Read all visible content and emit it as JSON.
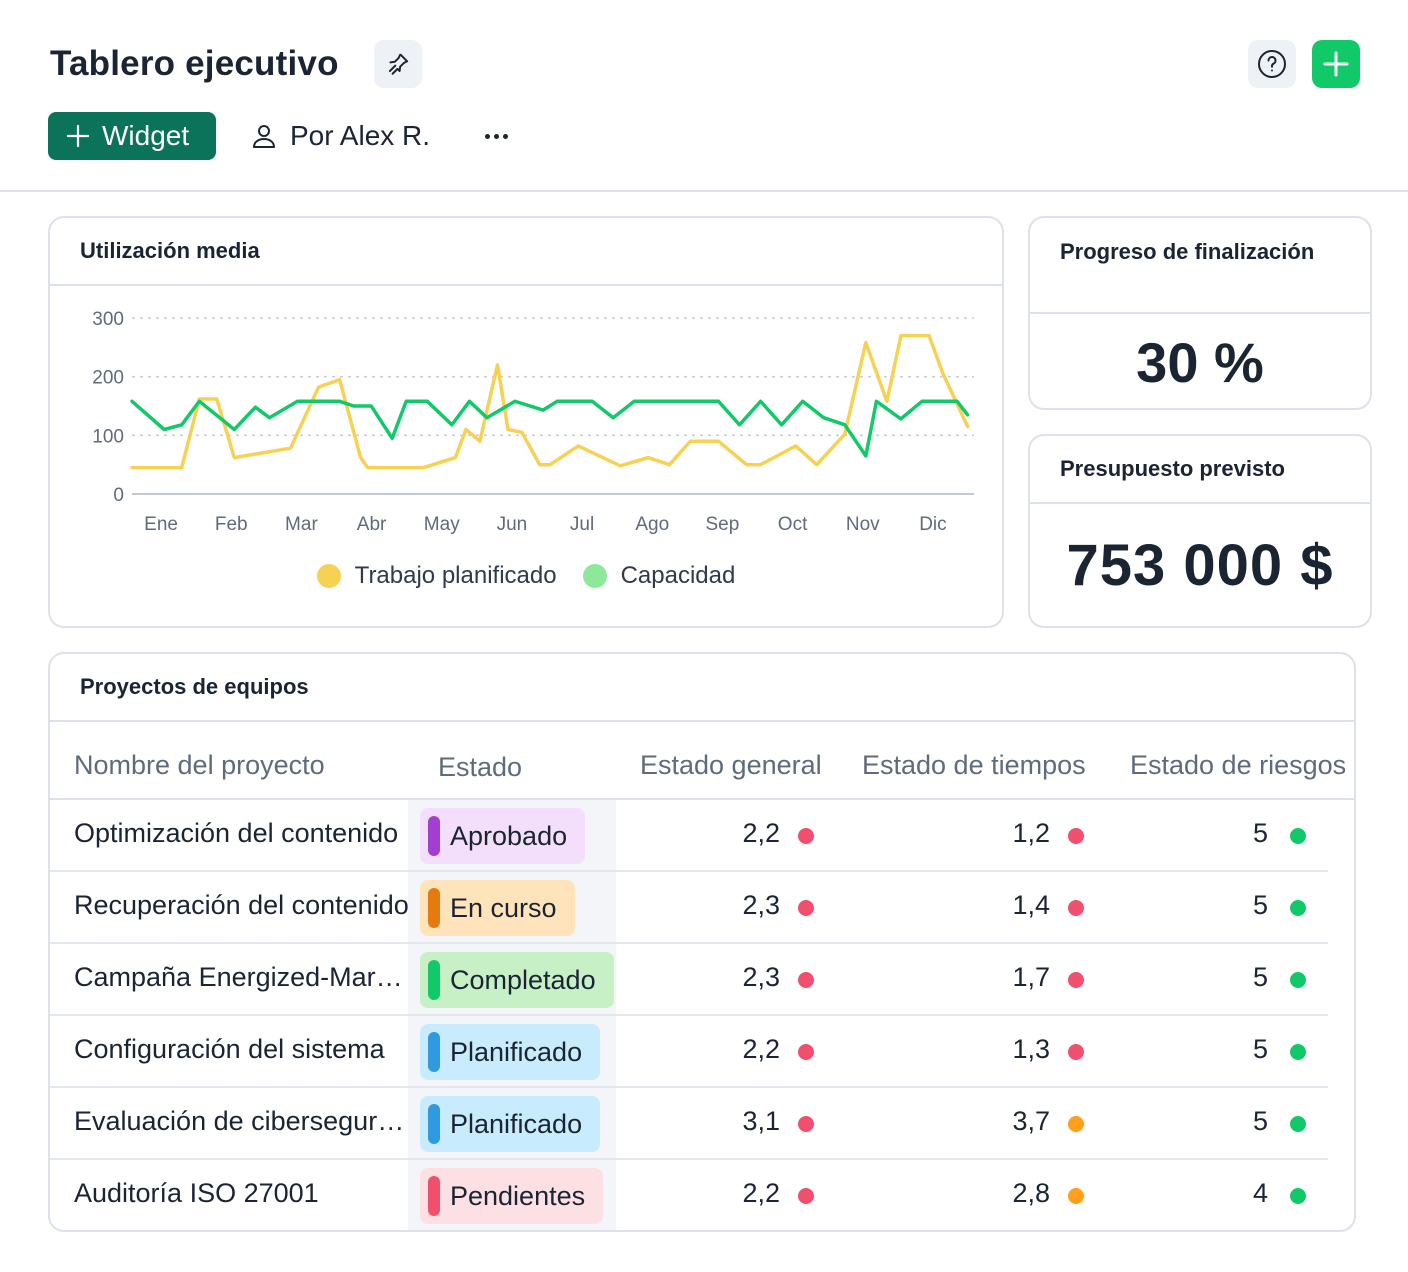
{
  "header": {
    "title": "Tablero ejecutivo",
    "widget_label": "Widget",
    "owner_label": "Por Alex R."
  },
  "colors": {
    "accent_dark": "#0b7359",
    "accent_green": "#12c96a",
    "planned_line": "#f7d154",
    "capacity_line": "#12c96a",
    "risk_red": "#f0506e",
    "risk_orange": "#ff9f1a",
    "risk_green": "#12c96a"
  },
  "utilization": {
    "title": "Utilización media",
    "legend": [
      {
        "label": "Trabajo planificado",
        "color": "#f7d154"
      },
      {
        "label": "Capacidad",
        "color": "#8ee89a"
      }
    ]
  },
  "chart_data": {
    "type": "line",
    "ylim": [
      0,
      300
    ],
    "yticks": [
      "0",
      "100",
      "200",
      "300"
    ],
    "categories": [
      "Ene",
      "Feb",
      "Mar",
      "Abr",
      "May",
      "Jun",
      "Jul",
      "Ago",
      "Sep",
      "Oct",
      "Nov",
      "Dic"
    ],
    "grid": true,
    "legend_position": "bottom",
    "series": [
      {
        "name": "Trabajo planificado",
        "x": [
          0,
          0.5,
          0.75,
          1,
          1.25,
          1.5,
          2.3,
          2.7,
          3.0,
          3.3,
          3.4,
          3.7,
          4.2,
          4.65,
          4.8,
          5.0,
          5.25,
          5.4,
          5.6,
          5.85,
          6.0,
          6.4,
          7.0,
          7.4,
          7.7,
          8.0,
          8.4,
          8.8,
          9.0,
          9.5,
          9.8,
          10.2,
          10.5,
          10.8,
          11.0,
          11.4,
          11.6,
          11.95
        ],
        "y": [
          45,
          45,
          45,
          162,
          162,
          62,
          78,
          182,
          195,
          62,
          45,
          45,
          45,
          62,
          110,
          90,
          220,
          110,
          105,
          50,
          50,
          82,
          48,
          62,
          50,
          90,
          90,
          50,
          50,
          82,
          50,
          102,
          258,
          158,
          270,
          270,
          205,
          115
        ]
      },
      {
        "name": "Capacidad",
        "x": [
          0,
          0.5,
          0.75,
          1.0,
          1.5,
          1.8,
          2.0,
          2.4,
          2.8,
          3.0,
          3.2,
          3.45,
          3.75,
          3.95,
          4.25,
          4.6,
          4.85,
          5.1,
          5.5,
          5.9,
          6.1,
          6.6,
          6.9,
          7.2,
          7.6,
          8.0,
          8.4,
          8.7,
          9.0,
          9.3,
          9.6,
          9.9,
          10.2,
          10.5,
          10.65,
          11.0,
          11.3,
          11.6,
          11.8,
          11.95
        ],
        "y": [
          158,
          110,
          118,
          158,
          110,
          148,
          130,
          158,
          158,
          158,
          150,
          150,
          95,
          158,
          158,
          118,
          158,
          130,
          158,
          143,
          158,
          158,
          130,
          158,
          158,
          158,
          158,
          118,
          158,
          118,
          158,
          130,
          118,
          65,
          158,
          128,
          158,
          158,
          158,
          135
        ]
      }
    ]
  },
  "progress": {
    "title": "Progreso de finalización",
    "value": "30 %"
  },
  "budget": {
    "title": "Presupuesto previsto",
    "value": "753 000 $"
  },
  "projects": {
    "title": "Proyectos de equipos",
    "columns": [
      "Nombre del proyecto",
      "Estado",
      "Estado general",
      "Estado de tiempos",
      "Estado de riesgos"
    ],
    "rows": [
      {
        "name": "Optimización del contenido",
        "status": "Aprobado",
        "status_bg": "#f3dffb",
        "status_bar": "#a33fd0",
        "general": "2,2",
        "general_color": "#f0506e",
        "time": "1,2",
        "time_color": "#f0506e",
        "risk": "5",
        "risk_color": "#12c96a"
      },
      {
        "name": "Recuperación del contenido",
        "status": "En curso",
        "status_bg": "#ffe4bb",
        "status_bar": "#e47b10",
        "general": "2,3",
        "general_color": "#f0506e",
        "time": "1,4",
        "time_color": "#f0506e",
        "risk": "5",
        "risk_color": "#12c96a"
      },
      {
        "name": "Campaña Energized-Marketing",
        "status": "Completado",
        "status_bg": "#c7f0c6",
        "status_bar": "#12c96a",
        "general": "2,3",
        "general_color": "#f0506e",
        "time": "1,7",
        "time_color": "#f0506e",
        "risk": "5",
        "risk_color": "#12c96a"
      },
      {
        "name": "Configuración del sistema",
        "status": "Planificado",
        "status_bg": "#c8ecfd",
        "status_bar": "#2f9ae0",
        "general": "2,2",
        "general_color": "#f0506e",
        "time": "1,3",
        "time_color": "#f0506e",
        "risk": "5",
        "risk_color": "#12c96a"
      },
      {
        "name": "Evaluación de ciberseguridad",
        "status": "Planificado",
        "status_bg": "#c8ecfd",
        "status_bar": "#2f9ae0",
        "general": "3,1",
        "general_color": "#f0506e",
        "time": "3,7",
        "time_color": "#ff9f1a",
        "risk": "5",
        "risk_color": "#12c96a"
      },
      {
        "name": "Auditoría ISO 27001",
        "status": "Pendientes",
        "status_bg": "#fde0e4",
        "status_bar": "#f0506e",
        "general": "2,2",
        "general_color": "#f0506e",
        "time": "2,8",
        "time_color": "#ff9f1a",
        "risk": "4",
        "risk_color": "#12c96a"
      }
    ]
  }
}
